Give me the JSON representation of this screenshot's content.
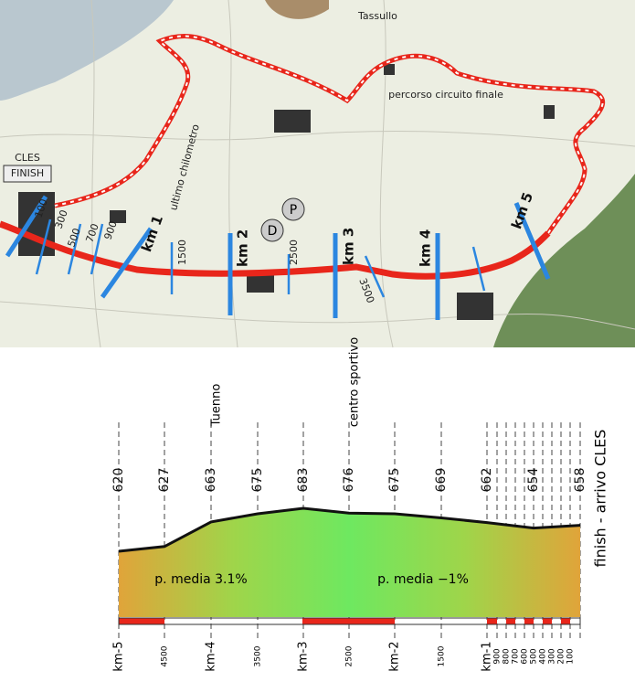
{
  "map": {
    "labels": {
      "cles": "CLES",
      "finish": "FINISH",
      "last_km": "ultimo chilometro",
      "circuit": "percorso circuito finale",
      "town": "Tassullo",
      "doping": "D",
      "parking": "P",
      "km1": "km 1",
      "km2": "km 2",
      "km3": "km 3",
      "km4": "km 4",
      "km5": "km 5",
      "m1500": "1500",
      "m2500": "2500",
      "m3500": "3500",
      "m100": "100",
      "m300": "300",
      "m500": "500",
      "m700": "700",
      "m900": "900"
    }
  },
  "profile": {
    "stations": [
      {
        "distance": "km-5",
        "elevation": 620
      },
      {
        "distance": "4500",
        "elevation": 627
      },
      {
        "distance": "km-4",
        "elevation": 663,
        "note": "Tuenno"
      },
      {
        "distance": "3500",
        "elevation": 675
      },
      {
        "distance": "km-3",
        "elevation": 683
      },
      {
        "distance": "2500",
        "elevation": 676,
        "note": "centro sportivo"
      },
      {
        "distance": "km-2",
        "elevation": 675
      },
      {
        "distance": "1500",
        "elevation": 669
      },
      {
        "distance": "km-1",
        "elevation": 662
      },
      {
        "distance": "900"
      },
      {
        "distance": "800"
      },
      {
        "distance": "700"
      },
      {
        "distance": "600"
      },
      {
        "distance": "500",
        "elevation": 654
      },
      {
        "distance": "400"
      },
      {
        "distance": "300"
      },
      {
        "distance": "200"
      },
      {
        "distance": "100"
      },
      {
        "elevation": 658
      }
    ],
    "gradients": [
      "p. media 3.1%",
      "p. media −1%"
    ],
    "finish_label": "finish - arrivo CLES"
  }
}
